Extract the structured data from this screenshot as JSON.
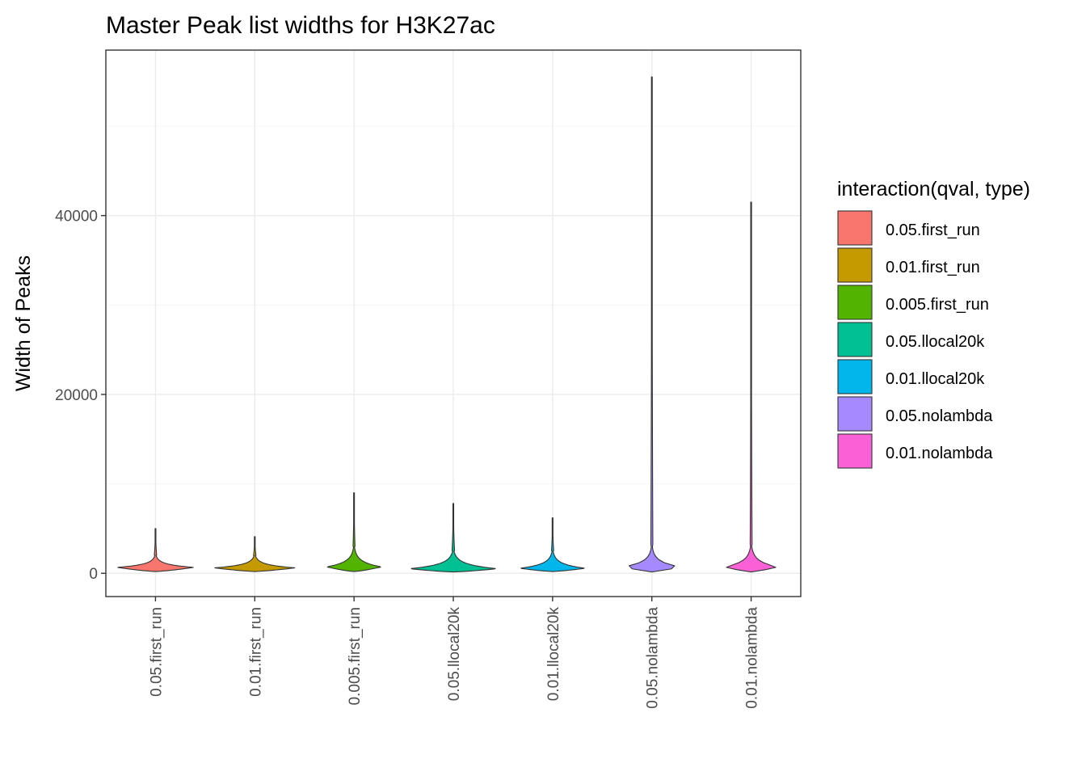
{
  "chart_data": {
    "type": "violin",
    "title": "Master Peak list widths for H3K27ac",
    "xlabel": "",
    "ylabel": "Width of Peaks",
    "ylim": [
      -2600,
      58500
    ],
    "y_ticks": [
      0,
      20000,
      40000
    ],
    "y_tick_labels": [
      "0",
      "20000",
      "40000"
    ],
    "y_minor_ticks": [
      10000,
      30000,
      50000
    ],
    "grid": true,
    "legend": {
      "title": "interaction(qval, type)",
      "position": "right"
    },
    "categories": [
      "0.05.first_run",
      "0.01.first_run",
      "0.005.first_run",
      "0.05.llocal20k",
      "0.01.llocal20k",
      "0.05.nolambda",
      "0.01.nolambda"
    ],
    "series": [
      {
        "name": "0.05.first_run",
        "color": "#F8766D",
        "min": 200,
        "mode": 650,
        "body_top": 2000,
        "max": 5000,
        "max_half_width": 0.38
      },
      {
        "name": "0.01.first_run",
        "color": "#C49A00",
        "min": 200,
        "mode": 600,
        "body_top": 2000,
        "max": 4100,
        "max_half_width": 0.4
      },
      {
        "name": "0.005.first_run",
        "color": "#53B400",
        "min": 200,
        "mode": 700,
        "body_top": 3000,
        "max": 9000,
        "max_half_width": 0.27
      },
      {
        "name": "0.05.llocal20k",
        "color": "#00C094",
        "min": 150,
        "mode": 500,
        "body_top": 2500,
        "max": 7800,
        "max_half_width": 0.43
      },
      {
        "name": "0.01.llocal20k",
        "color": "#00B6EB",
        "min": 200,
        "mode": 550,
        "body_top": 2500,
        "max": 6200,
        "max_half_width": 0.32
      },
      {
        "name": "0.05.nolambda",
        "color": "#A58AFF",
        "min": 150,
        "mode": 700,
        "body_top": 3000,
        "max": 55500,
        "max_half_width": 0.28
      },
      {
        "name": "0.01.nolambda",
        "color": "#FB61D7",
        "min": 150,
        "mode": 700,
        "body_top": 3200,
        "max": 41500,
        "max_half_width": 0.26
      }
    ]
  }
}
